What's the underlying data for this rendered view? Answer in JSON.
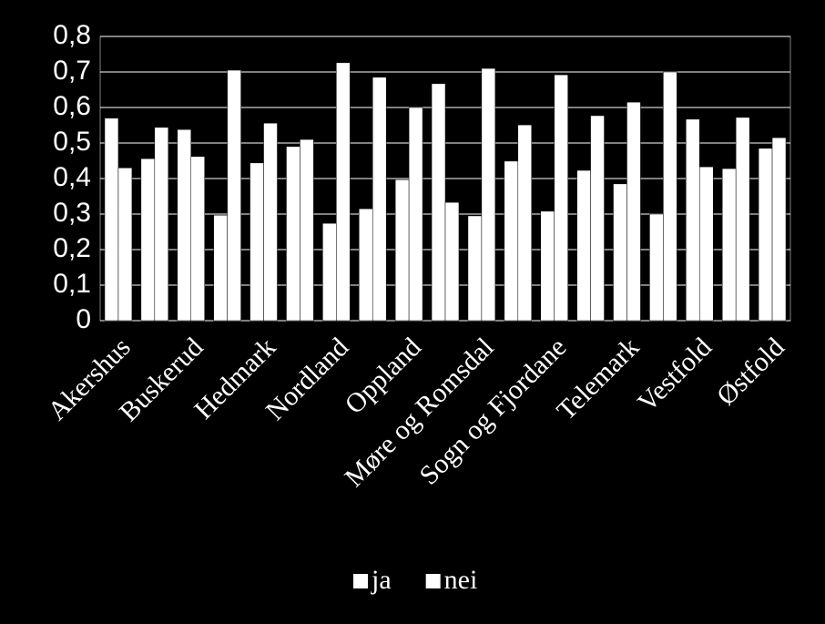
{
  "chart_data": {
    "type": "bar",
    "categories": [
      "Akershus",
      null,
      "Buskerud",
      null,
      "Hedmark",
      null,
      "Nordland",
      null,
      "Oppland",
      null,
      "Møre og Romsdal",
      null,
      "Sogn og Fjordane",
      null,
      "Telemark",
      null,
      "Vestfold",
      null,
      "Østfold"
    ],
    "series": [
      {
        "name": "ja",
        "color": "#ffffff",
        "values": [
          0.57,
          0.456,
          0.538,
          0.297,
          0.444,
          0.49,
          0.274,
          0.315,
          0.397,
          0.667,
          0.295,
          0.449,
          0.308,
          0.423,
          0.385,
          0.3,
          0.567,
          0.428,
          0.485
        ]
      },
      {
        "name": "nei",
        "color": "#ffffff",
        "values": [
          0.43,
          0.544,
          0.462,
          0.705,
          0.556,
          0.51,
          0.726,
          0.685,
          0.6,
          0.333,
          0.71,
          0.551,
          0.692,
          0.577,
          0.615,
          0.7,
          0.433,
          0.572,
          0.515
        ]
      }
    ],
    "ylim": [
      0,
      0.8
    ],
    "yticks": [
      0,
      {
        "value": 0.1,
        "label": "0,1"
      },
      {
        "value": 0.2,
        "label": "0,2"
      },
      {
        "value": 0.3,
        "label": "0,3"
      },
      {
        "value": 0.4,
        "label": "0,4"
      },
      {
        "value": 0.5,
        "label": "0,5"
      },
      {
        "value": 0.6,
        "label": "0,6"
      },
      {
        "value": 0.7,
        "label": "0,7"
      },
      {
        "value": 0.8,
        "label": "0,8"
      }
    ],
    "grid": true,
    "legend": "bottom"
  }
}
